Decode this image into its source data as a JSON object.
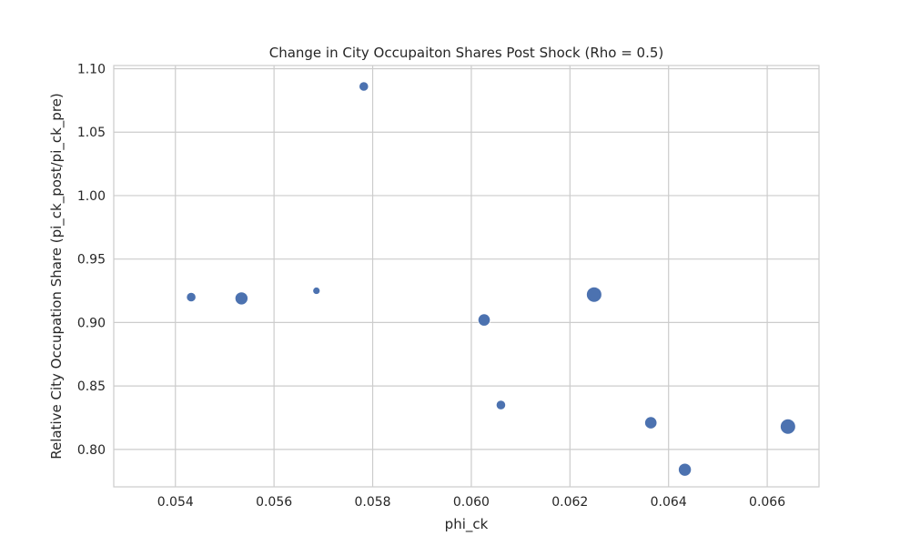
{
  "chart_data": {
    "type": "scatter",
    "title": "Change in City Occupaiton Shares Post Shock (Rho = 0.5)",
    "xlabel": "phi_ck",
    "ylabel": "Relative City Occupation Share (pi_ck_post/pi_ck_pre)",
    "xlim": [
      0.05275,
      0.06705
    ],
    "ylim": [
      0.7705,
      1.1025
    ],
    "xticks": [
      "0.054",
      "0.056",
      "0.058",
      "0.060",
      "0.062",
      "0.064",
      "0.066"
    ],
    "yticks": [
      "0.80",
      "0.85",
      "0.90",
      "0.95",
      "1.00",
      "1.05",
      "1.10"
    ],
    "grid": true,
    "marker_color": "#4C72B0",
    "series": [
      {
        "points": [
          {
            "x": 0.05534,
            "y": 0.919,
            "size": 3
          },
          {
            "x": 0.05432,
            "y": 0.92,
            "size": 1
          },
          {
            "x": 0.05686,
            "y": 0.925,
            "size": 0.3
          },
          {
            "x": 0.05782,
            "y": 1.086,
            "size": 1
          },
          {
            "x": 0.06026,
            "y": 0.902,
            "size": 2.5
          },
          {
            "x": 0.0606,
            "y": 0.835,
            "size": 1
          },
          {
            "x": 0.06249,
            "y": 0.922,
            "size": 5
          },
          {
            "x": 0.06364,
            "y": 0.821,
            "size": 2.5
          },
          {
            "x": 0.06433,
            "y": 0.784,
            "size": 3
          },
          {
            "x": 0.06642,
            "y": 0.818,
            "size": 5
          }
        ]
      }
    ]
  }
}
